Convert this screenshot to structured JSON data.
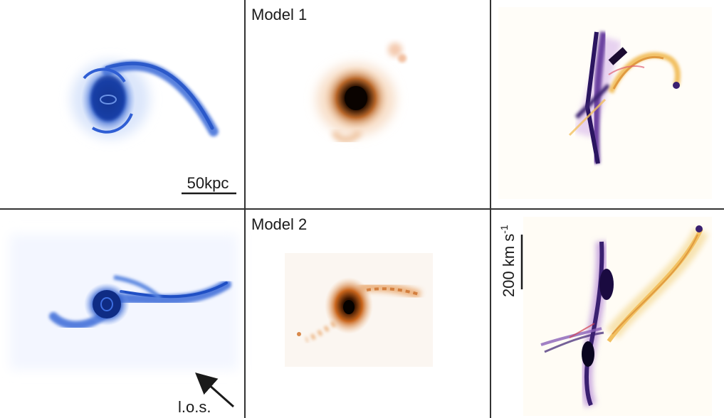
{
  "panels": {
    "row1": {
      "model_label": "Model 1",
      "scale_bar_label": "50kpc"
    },
    "row2": {
      "model_label": "Model 2",
      "los_label": "l.o.s.",
      "velocity_bar_label": "200 km s",
      "velocity_bar_exponent": "-1"
    }
  },
  "colors": {
    "gas_blue": "#1f4fc4",
    "stellar_orange": "#c8651c",
    "stellar_core": "#1a0a00",
    "velocity_purple": "#3a2070",
    "velocity_yellow": "#f2c060",
    "grid_lines": "#333333"
  }
}
